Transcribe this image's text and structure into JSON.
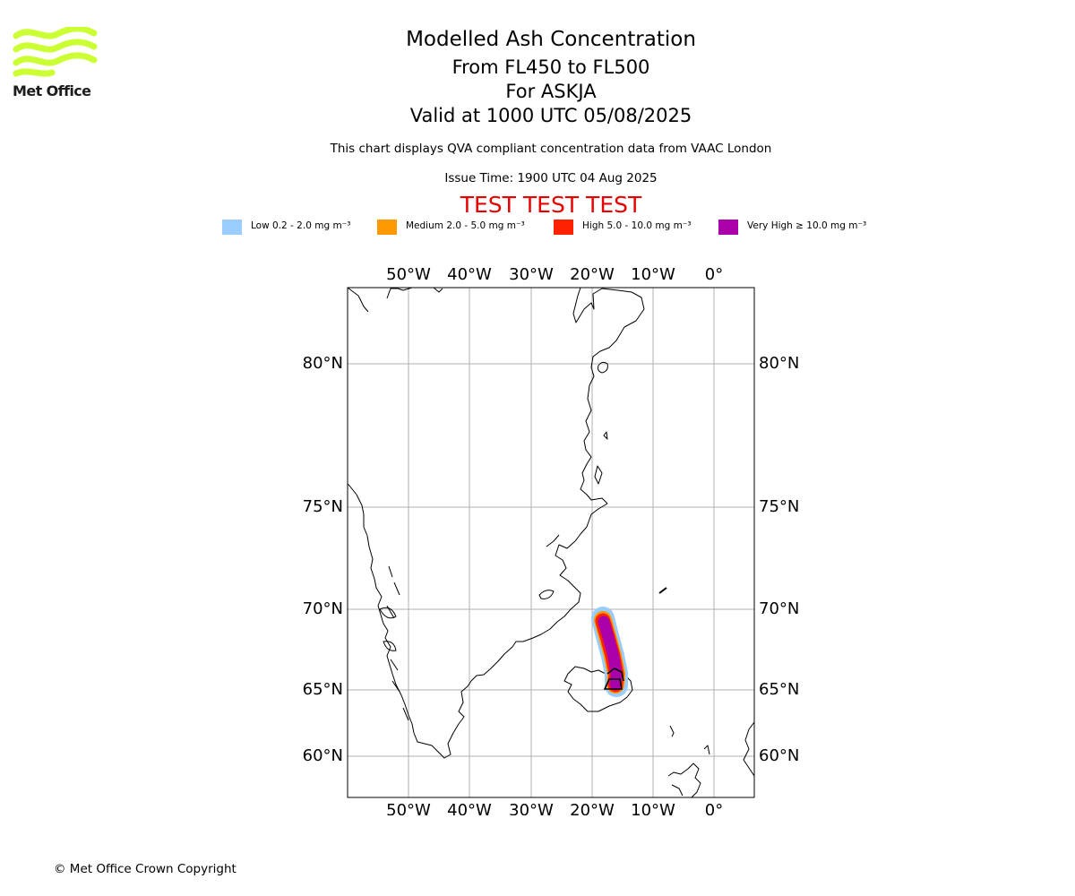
{
  "logo": {
    "text": "Met Office",
    "color": "#ccff33"
  },
  "header": {
    "title": "Modelled Ash Concentration",
    "flight_levels": "From FL450 to FL500",
    "volcano": "For ASKJA",
    "valid": "Valid at 1000 UTC 05/08/2025",
    "note": "This chart displays QVA compliant concentration data from VAAC London",
    "issue_time": "Issue Time: 1900 UTC 04 Aug 2025",
    "test_banner": "TEST TEST TEST"
  },
  "legend": [
    {
      "label": "Low 0.2 - 2.0 mg m⁻³",
      "color": "#99ccff"
    },
    {
      "label": "Medium 2.0 - 5.0 mg m⁻³",
      "color": "#ff9900"
    },
    {
      "label": "High 5.0 - 10.0 mg m⁻³",
      "color": "#ff2200"
    },
    {
      "label": "Very High ≥ 10.0 mg m⁻³",
      "color": "#aa00aa"
    }
  ],
  "map": {
    "lon_labels": [
      "50°W",
      "40°W",
      "30°W",
      "20°W",
      "10°W",
      "0°"
    ],
    "lat_labels": [
      "80°N",
      "75°N",
      "70°N",
      "65°N",
      "60°N"
    ],
    "gridlines": true
  },
  "footer": {
    "copyright": "© Met Office Crown Copyright"
  }
}
